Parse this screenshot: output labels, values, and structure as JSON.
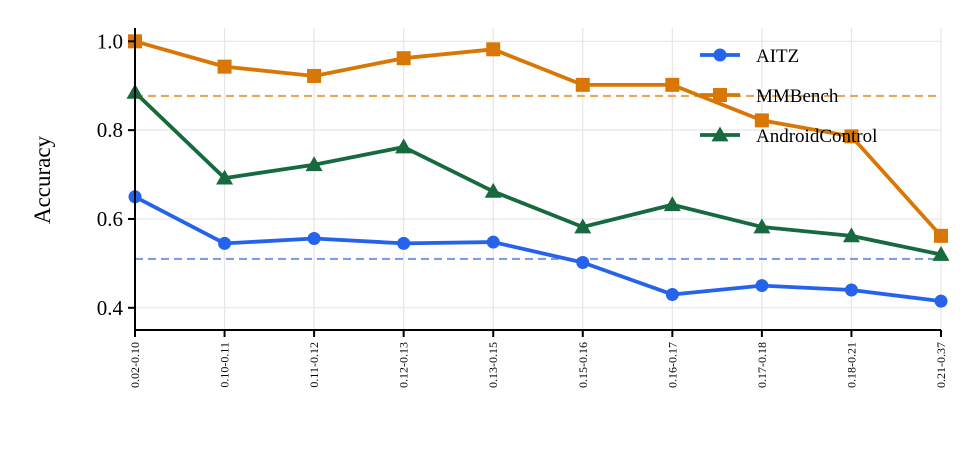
{
  "chart_data": {
    "type": "line",
    "title": "",
    "xlabel": "",
    "ylabel": "Accuracy",
    "categories": [
      "0.02-0.10",
      "0.10-0.11",
      "0.11-0.12",
      "0.12-0.13",
      "0.13-0.15",
      "0.15-0.16",
      "0.16-0.17",
      "0.17-0.18",
      "0.18-0.21",
      "0.21-0.37"
    ],
    "ylim": [
      0.35,
      1.03
    ],
    "yticks": [
      0.4,
      0.6,
      0.8,
      1.0
    ],
    "ytick_labels": [
      "0.4",
      "0.6",
      "0.8",
      "1.0"
    ],
    "grid": true,
    "legend_position": "top-right",
    "series": [
      {
        "name": "AITZ",
        "color": "#2563eb",
        "marker": "circle",
        "values": [
          0.65,
          0.545,
          0.556,
          0.545,
          0.548,
          0.502,
          0.43,
          0.45,
          0.44,
          0.415
        ]
      },
      {
        "name": "MMBench",
        "color": "#d97706",
        "marker": "square",
        "values": [
          1.0,
          0.943,
          0.922,
          0.962,
          0.982,
          0.902,
          0.902,
          0.822,
          0.786,
          0.562
        ]
      },
      {
        "name": "AndroidControl",
        "color": "#166a3e",
        "marker": "triangle",
        "values": [
          0.885,
          0.692,
          0.722,
          0.762,
          0.662,
          0.582,
          0.632,
          0.582,
          0.562,
          0.52
        ]
      }
    ],
    "reference_lines": [
      {
        "series": "MMBench",
        "value": 0.877,
        "color": "#e8a85c",
        "style": "dashed"
      },
      {
        "series": "AITZ",
        "value": 0.51,
        "color": "#7c9ee8",
        "style": "dashed"
      }
    ]
  }
}
